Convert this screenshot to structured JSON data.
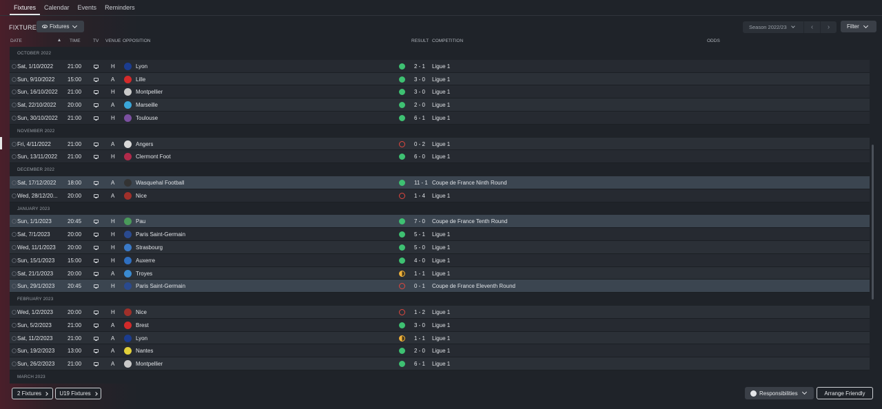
{
  "tabs": [
    {
      "label": "Fixtures",
      "active": true
    },
    {
      "label": "Calendar",
      "active": false
    },
    {
      "label": "Events",
      "active": false
    },
    {
      "label": "Reminders",
      "active": false
    }
  ],
  "header": {
    "title": "FIXTURES",
    "view_button": "Fixtures",
    "season": "Season 2022/23",
    "filter": "Filter"
  },
  "columns": {
    "date": "DATE",
    "time": "TIME",
    "tv": "TV",
    "venue": "VENUE",
    "opposition": "OPPOSITION",
    "result": "RESULT",
    "competition": "COMPETITION",
    "odds": "ODDS"
  },
  "colors": {
    "win": "#3ec172",
    "loss": "#e3473e",
    "draw": "#f0b23a",
    "highlight_row": "#3b4550"
  },
  "groups": [
    {
      "month": "OCTOBER 2022",
      "fixtures": [
        {
          "date": "Sat, 1/10/2022",
          "time": "21:00",
          "venue": "H",
          "opposition": "Lyon",
          "badge": "#1b3c8f",
          "outcome": "win",
          "score": "2 - 1",
          "competition": "Ligue 1",
          "highlight": false
        },
        {
          "date": "Sun, 9/10/2022",
          "time": "15:00",
          "venue": "A",
          "opposition": "Lille",
          "badge": "#d42a2a",
          "outcome": "win",
          "score": "3 - 0",
          "competition": "Ligue 1",
          "highlight": false
        },
        {
          "date": "Sun, 16/10/2022",
          "time": "21:00",
          "venue": "H",
          "opposition": "Montpellier",
          "badge": "#c9c9c9",
          "outcome": "win",
          "score": "3 - 0",
          "competition": "Ligue 1",
          "highlight": false
        },
        {
          "date": "Sat, 22/10/2022",
          "time": "20:00",
          "venue": "A",
          "opposition": "Marseille",
          "badge": "#3aa6d8",
          "outcome": "win",
          "score": "2 - 0",
          "competition": "Ligue 1",
          "highlight": false
        },
        {
          "date": "Sun, 30/10/2022",
          "time": "21:00",
          "venue": "H",
          "opposition": "Toulouse",
          "badge": "#7b4fa0",
          "outcome": "win",
          "score": "6 - 1",
          "competition": "Ligue 1",
          "highlight": false
        }
      ]
    },
    {
      "month": "NOVEMBER 2022",
      "fixtures": [
        {
          "date": "Fri, 4/11/2022",
          "time": "21:00",
          "venue": "A",
          "opposition": "Angers",
          "badge": "#d8d8d8",
          "outcome": "loss",
          "score": "0 - 2",
          "competition": "Ligue 1",
          "highlight": false
        },
        {
          "date": "Sun, 13/11/2022",
          "time": "21:00",
          "venue": "H",
          "opposition": "Clermont Foot",
          "badge": "#b02a4a",
          "outcome": "win",
          "score": "6 - 0",
          "competition": "Ligue 1",
          "highlight": false
        }
      ]
    },
    {
      "month": "DECEMBER 2022",
      "fixtures": [
        {
          "date": "Sat, 17/12/2022",
          "time": "18:00",
          "venue": "A",
          "opposition": "Wasquehal Football",
          "badge": "#333333",
          "outcome": "win",
          "score": "11 - 1",
          "competition": "Coupe de France Ninth Round",
          "highlight": true
        },
        {
          "date": "Wed, 28/12/20...",
          "time": "20:00",
          "venue": "A",
          "opposition": "Nice",
          "badge": "#a0302a",
          "outcome": "loss",
          "score": "1 - 4",
          "competition": "Ligue 1",
          "highlight": false
        }
      ]
    },
    {
      "month": "JANUARY 2023",
      "fixtures": [
        {
          "date": "Sun, 1/1/2023",
          "time": "20:45",
          "venue": "H",
          "opposition": "Pau",
          "badge": "#4a9a5a",
          "outcome": "win",
          "score": "7 - 0",
          "competition": "Coupe de France Tenth Round",
          "highlight": true
        },
        {
          "date": "Sat, 7/1/2023",
          "time": "20:00",
          "venue": "H",
          "opposition": "Paris Saint-Germain",
          "badge": "#2a4a8f",
          "outcome": "win",
          "score": "5 - 1",
          "competition": "Ligue 1",
          "highlight": false
        },
        {
          "date": "Wed, 11/1/2023",
          "time": "20:00",
          "venue": "H",
          "opposition": "Strasbourg",
          "badge": "#3a7ac8",
          "outcome": "win",
          "score": "5 - 0",
          "competition": "Ligue 1",
          "highlight": false
        },
        {
          "date": "Sun, 15/1/2023",
          "time": "15:00",
          "venue": "H",
          "opposition": "Auxerre",
          "badge": "#2f6fc0",
          "outcome": "win",
          "score": "4 - 0",
          "competition": "Ligue 1",
          "highlight": false
        },
        {
          "date": "Sat, 21/1/2023",
          "time": "20:00",
          "venue": "A",
          "opposition": "Troyes",
          "badge": "#3a8ad0",
          "outcome": "draw",
          "score": "1 - 1",
          "competition": "Ligue 1",
          "highlight": false
        },
        {
          "date": "Sun, 29/1/2023",
          "time": "20:45",
          "venue": "H",
          "opposition": "Paris Saint-Germain",
          "badge": "#2a4a8f",
          "outcome": "loss",
          "score": "0 - 1",
          "competition": "Coupe de France Eleventh Round",
          "highlight": true
        }
      ]
    },
    {
      "month": "FEBRUARY 2023",
      "fixtures": [
        {
          "date": "Wed, 1/2/2023",
          "time": "20:00",
          "venue": "H",
          "opposition": "Nice",
          "badge": "#a0302a",
          "outcome": "loss",
          "score": "1 - 2",
          "competition": "Ligue 1",
          "highlight": false
        },
        {
          "date": "Sun, 5/2/2023",
          "time": "21:00",
          "venue": "A",
          "opposition": "Brest",
          "badge": "#d22a2a",
          "outcome": "win",
          "score": "3 - 0",
          "competition": "Ligue 1",
          "highlight": false
        },
        {
          "date": "Sat, 11/2/2023",
          "time": "21:00",
          "venue": "A",
          "opposition": "Lyon",
          "badge": "#1b3c8f",
          "outcome": "draw",
          "score": "1 - 1",
          "competition": "Ligue 1",
          "highlight": false
        },
        {
          "date": "Sun, 19/2/2023",
          "time": "13:00",
          "venue": "A",
          "opposition": "Nantes",
          "badge": "#e2d03a",
          "outcome": "win",
          "score": "2 - 0",
          "competition": "Ligue 1",
          "highlight": false
        },
        {
          "date": "Sun, 26/2/2023",
          "time": "21:00",
          "venue": "A",
          "opposition": "Montpellier",
          "badge": "#c9c9c9",
          "outcome": "win",
          "score": "6 - 1",
          "competition": "Ligue 1",
          "highlight": false
        }
      ]
    },
    {
      "month": "MARCH 2023",
      "fixtures": []
    }
  ],
  "footer": {
    "first_team_fixtures": "2 Fixtures",
    "u19_fixtures": "U19 Fixtures",
    "responsibilities": "Responsibilities",
    "arrange_friendly": "Arrange Friendly"
  }
}
